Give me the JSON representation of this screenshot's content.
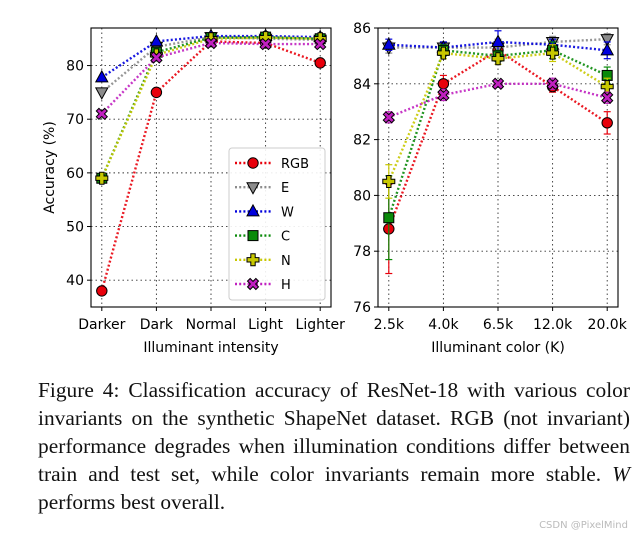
{
  "chart_data": [
    {
      "type": "line",
      "xlabel": "Illuminant intensity",
      "ylabel": "Accuracy (%)",
      "categories": [
        "Darker",
        "Dark",
        "Normal",
        "Light",
        "Lighter"
      ],
      "ylim": [
        35,
        87
      ],
      "yticks": [
        40,
        50,
        60,
        70,
        80
      ],
      "grid": "dotted",
      "legend": "lower-right",
      "series": [
        {
          "name": "RGB",
          "color": "#e8000b",
          "marker": "circle",
          "values": [
            38.0,
            75.0,
            84.5,
            84.2,
            80.5
          ]
        },
        {
          "name": "E",
          "color": "#8c8c8c",
          "marker": "triangle-down",
          "values": [
            75.0,
            83.5,
            85.3,
            85.0,
            84.8
          ]
        },
        {
          "name": "W",
          "color": "#0000dd",
          "marker": "triangle-up",
          "values": [
            77.8,
            84.5,
            85.5,
            85.5,
            85.3
          ]
        },
        {
          "name": "C",
          "color": "#0a8a0a",
          "marker": "square",
          "values": [
            59.0,
            82.5,
            85.2,
            85.3,
            85.0
          ]
        },
        {
          "name": "N",
          "color": "#c8c800",
          "marker": "plus",
          "values": [
            59.0,
            82.0,
            85.0,
            85.2,
            85.0
          ]
        },
        {
          "name": "H",
          "color": "#c020c0",
          "marker": "x",
          "values": [
            71.0,
            81.5,
            84.2,
            84.0,
            84.0
          ]
        }
      ]
    },
    {
      "type": "line",
      "xlabel": "Illuminant color (K)",
      "ylabel": "",
      "categories": [
        "2.5k",
        "4.0k",
        "6.5k",
        "12.0k",
        "20.0k"
      ],
      "ylim": [
        76,
        86
      ],
      "yticks": [
        76,
        78,
        80,
        82,
        84,
        86
      ],
      "grid": "dotted",
      "series": [
        {
          "name": "RGB",
          "values": [
            78.8,
            84.0,
            85.2,
            83.9,
            82.6
          ],
          "err": [
            1.6,
            0.3,
            0.2,
            0.2,
            0.4
          ]
        },
        {
          "name": "E",
          "values": [
            85.3,
            85.3,
            85.3,
            85.5,
            85.6
          ],
          "err": [
            0.2,
            0.2,
            0.3,
            0.2,
            0.2
          ]
        },
        {
          "name": "W",
          "values": [
            85.4,
            85.3,
            85.5,
            85.4,
            85.2
          ],
          "err": [
            0.2,
            0.2,
            0.4,
            0.2,
            0.3
          ]
        },
        {
          "name": "C",
          "values": [
            79.2,
            85.2,
            85.0,
            85.2,
            84.3
          ],
          "err": [
            1.5,
            0.2,
            0.2,
            0.3,
            0.3
          ]
        },
        {
          "name": "N",
          "values": [
            80.5,
            85.1,
            84.9,
            85.1,
            83.9
          ],
          "err": [
            0.6,
            0.2,
            0.2,
            0.3,
            0.3
          ]
        },
        {
          "name": "H",
          "values": [
            82.8,
            83.6,
            84.0,
            84.0,
            83.5
          ],
          "err": [
            0.2,
            0.2,
            0.1,
            0.2,
            0.2
          ]
        }
      ]
    }
  ],
  "caption": {
    "text_a": "Figure 4:  Classification accuracy of ResNet-18 with various color invariants on the synthetic ShapeNet dataset. RGB (not invariant) performance degrades when illumination conditions differ between train and test set, while color invariants remain more stable. ",
    "symbol": "W",
    "text_b": " performs best overall."
  },
  "watermark": "CSDN @PixelMind"
}
